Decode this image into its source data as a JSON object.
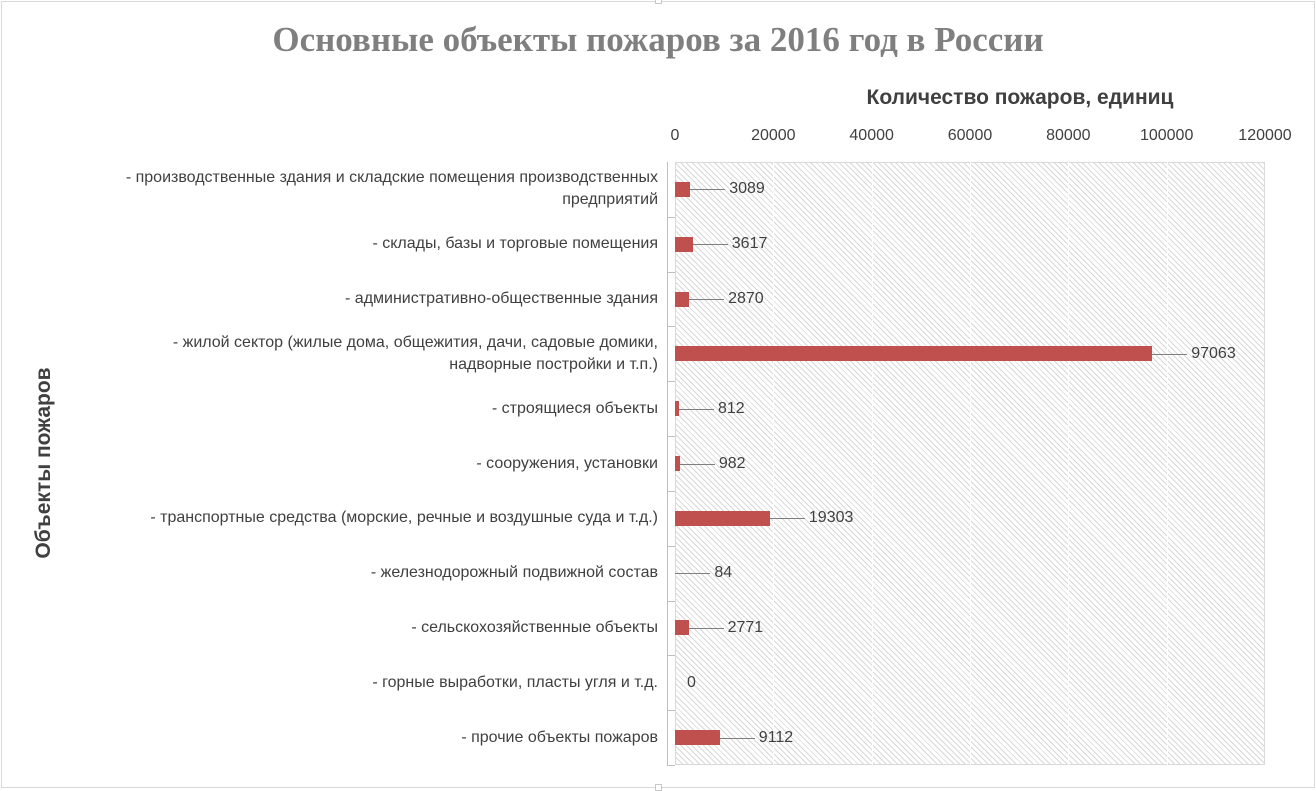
{
  "chart_data": {
    "type": "bar",
    "orientation": "horizontal",
    "title": "Основные объекты пожаров за 2016 год в России",
    "xlabel": "Количество пожаров, единиц",
    "ylabel": "Объекты пожаров",
    "xlim": [
      0,
      120000
    ],
    "x_ticks": [
      "0",
      "20000",
      "40000",
      "60000",
      "80000",
      "100000",
      "120000"
    ],
    "x_axis_position": "top",
    "grid": true,
    "legend": "none",
    "bar_color": "#c0504d",
    "categories": [
      "- производственные здания и складские помещения производственных предприятий",
      "- склады, базы и торговые помещения",
      "- административно-общественные здания",
      "- жилой сектор (жилые дома, общежития, дачи, садовые домики, надворные постройки и т.п.)",
      "- строящиеся объекты",
      "- сооружения, установки",
      "- транспортные средства (морские, речные и воздушные суда и т.д.)",
      "- железнодорожный подвижной состав",
      "- сельскохозяйственные объекты",
      "- горные выработки, пласты угля и т.д.",
      "- прочие объекты пожаров"
    ],
    "category_lines": [
      [
        "- производственные здания и складские помещения производственных",
        "предприятий"
      ],
      [
        "- склады, базы и торговые помещения"
      ],
      [
        "- административно-общественные здания"
      ],
      [
        "- жилой сектор (жилые дома, общежития, дачи, садовые домики,",
        "надворные постройки и т.п.)"
      ],
      [
        "- строящиеся объекты"
      ],
      [
        "- сооружения, установки"
      ],
      [
        "- транспортные средства (морские, речные и воздушные суда и т.д.)"
      ],
      [
        "- железнодорожный подвижной состав"
      ],
      [
        "- сельскохозяйственные объекты"
      ],
      [
        "- горные выработки, пласты угля и т.д."
      ],
      [
        "- прочие объекты пожаров"
      ]
    ],
    "values": [
      3089,
      3617,
      2870,
      97063,
      812,
      982,
      19303,
      84,
      2771,
      0,
      9112
    ],
    "data_labels": [
      "3089",
      "3617",
      "2870",
      "97063",
      "812",
      "982",
      "19303",
      "84",
      "2771",
      "0",
      "9112"
    ]
  }
}
